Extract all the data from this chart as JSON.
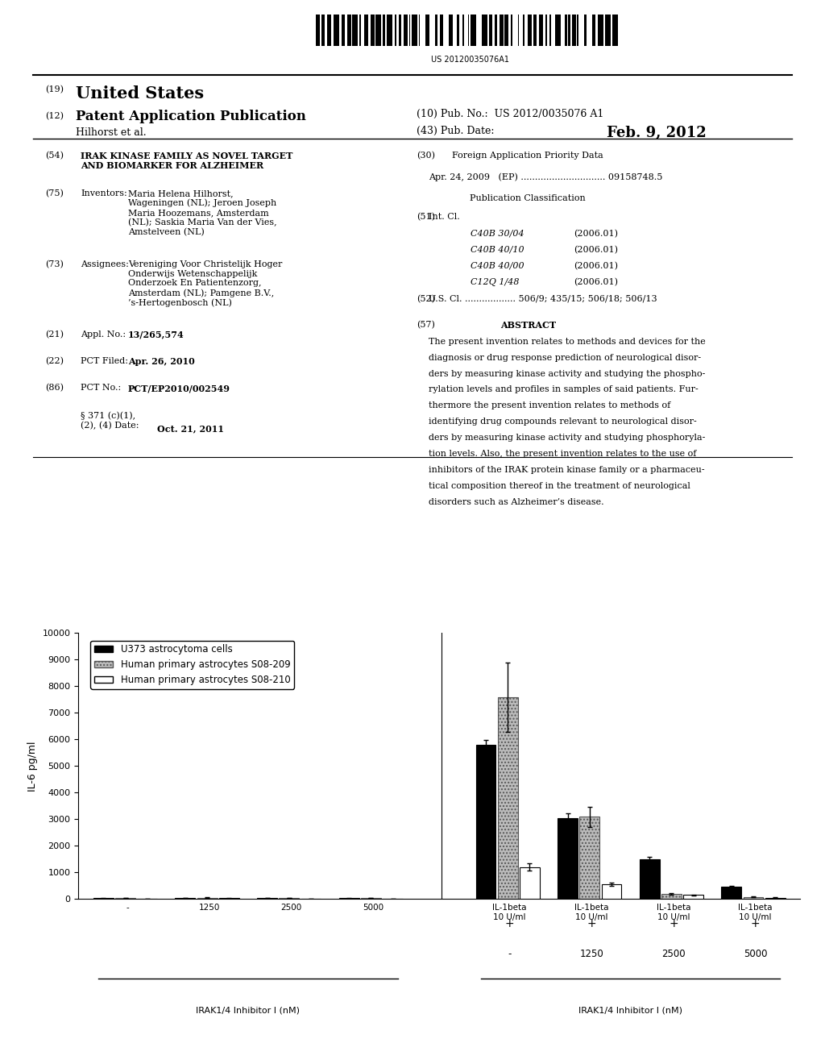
{
  "barcode_text": "US 20120035076A1",
  "section_54_title": "IRAK KINASE FAMILY AS NOVEL TARGET\nAND BIOMARKER FOR ALZHEIMER",
  "section_75_text": "Maria Helena Hilhorst,\nWageningen (NL); Jeroen Joseph\nMaria Hoozemans, Amsterdam\n(NL); Saskia Maria Van der Vies,\nAmstelveen (NL)",
  "section_73_text": "Vereniging Voor Christelijk Hoger\nOnderwijs Wetenschappelijk\nOnderzoek En Patientenzorg,\nAmsterdam (NL); Pamgene B.V.,\n’s-Hertogenbosch (NL)",
  "section_21_text": "13/265,574",
  "section_22_text": "Apr. 26, 2010",
  "section_86_text": "PCT/EP2010/002549",
  "section_86b_text": "§ 371 (c)(1),\n(2), (4) Date:",
  "section_86b_date": "Oct. 21, 2011",
  "section_30_text": "Apr. 24, 2009   (EP) .............................. 09158748.5",
  "int_cl": [
    [
      "C40B 30/04",
      "(2006.01)"
    ],
    [
      "C40B 40/10",
      "(2006.01)"
    ],
    [
      "C40B 40/00",
      "(2006.01)"
    ],
    [
      "C12Q 1/48",
      "(2006.01)"
    ]
  ],
  "section_52_text": "U.S. Cl. .................. 506/9; 435/15; 506/18; 506/13",
  "abstract": "The present invention relates to methods and devices for the diagnosis or drug response prediction of neurological disorders by measuring kinase activity and studying the phosphorylation levels and profiles in samples of said patients. Furthermore the present invention relates to methods of identifying drug compounds relevant to neurological disorders by measuring kinase activity and studying phosphorylation levels. Also, the present invention relates to the use of inhibitors of the IRAK protein kinase family or a pharmaceutical composition thereof in the treatment of neurological disorders such as Alzheimer’s disease.",
  "chart": {
    "ylabel": "IL-6 pg/ml",
    "ylim": [
      0,
      10000
    ],
    "yticks": [
      0,
      1000,
      2000,
      3000,
      4000,
      5000,
      6000,
      7000,
      8000,
      9000,
      10000
    ],
    "legend": [
      "U373 astrocytoma cells",
      "Human primary astrocytes S08-209",
      "Human primary astrocytes S08-210"
    ],
    "bar_colors": [
      "#000000",
      "#bbbbbb",
      "#ffffff"
    ],
    "bar_edgecolors": [
      "#000000",
      "#555555",
      "#000000"
    ],
    "groups": [
      {
        "label": "-",
        "bars": [
          30,
          35,
          20
        ],
        "errors": [
          4,
          6,
          4
        ]
      },
      {
        "label": "1250",
        "bars": [
          40,
          55,
          30
        ],
        "errors": [
          5,
          8,
          5
        ]
      },
      {
        "label": "2500",
        "bars": [
          32,
          45,
          22
        ],
        "errors": [
          4,
          7,
          4
        ]
      },
      {
        "label": "5000",
        "bars": [
          28,
          38,
          18
        ],
        "errors": [
          4,
          6,
          4
        ]
      },
      {
        "label": "IL-1beta\n10 U/ml",
        "bars": [
          5800,
          7600,
          1200
        ],
        "errors": [
          180,
          1300,
          140
        ]
      },
      {
        "label": "IL-1beta\n10 U/ml",
        "bars": [
          3050,
          3100,
          550
        ],
        "errors": [
          160,
          380,
          55
        ]
      },
      {
        "label": "IL-1beta\n10 U/ml",
        "bars": [
          1500,
          200,
          150
        ],
        "errors": [
          90,
          35,
          28
        ]
      },
      {
        "label": "IL-1beta\n10 U/ml",
        "bars": [
          480,
          80,
          55
        ],
        "errors": [
          28,
          18,
          12
        ]
      }
    ],
    "left_xlabel": "IRAK1/4 Inhibitor I (nM)",
    "right_xlabel": "IRAK1/4 Inhibitor I (nM)",
    "right_sub_labels": [
      "-",
      "1250",
      "2500",
      "5000"
    ]
  }
}
